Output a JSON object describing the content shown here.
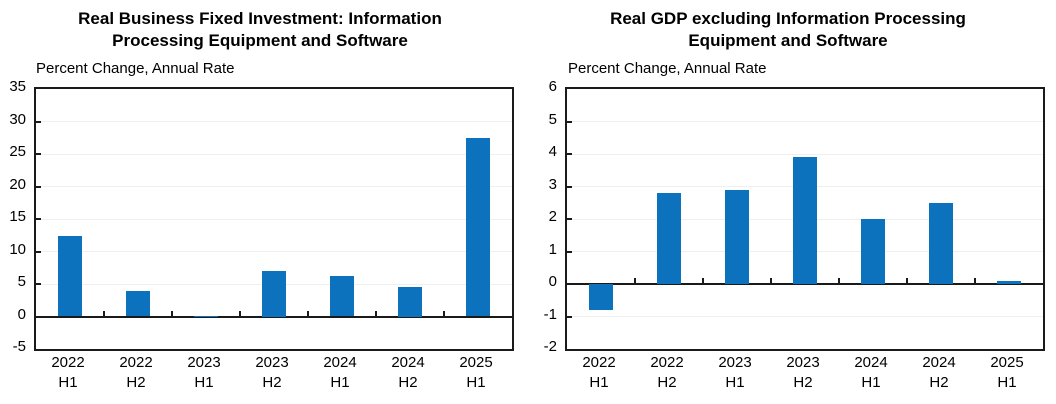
{
  "chart_data": [
    {
      "type": "bar",
      "title": "Real Business Fixed Investment: Information Processing Equipment and Software",
      "title_lines": [
        "Real Business Fixed Investment: Information",
        "Processing Equipment and Software"
      ],
      "units_label": "Percent Change, Annual Rate",
      "categories": [
        [
          "2022",
          "H1"
        ],
        [
          "2022",
          "H2"
        ],
        [
          "2023",
          "H1"
        ],
        [
          "2023",
          "H2"
        ],
        [
          "2024",
          "H1"
        ],
        [
          "2024",
          "H2"
        ],
        [
          "2025",
          "H1"
        ]
      ],
      "values": [
        12.4,
        3.9,
        0.1,
        7.0,
        6.3,
        4.5,
        27.4
      ],
      "ylim": [
        -5,
        35
      ],
      "yticks": [
        35,
        30,
        25,
        20,
        15,
        10,
        5,
        0,
        -5
      ],
      "grid": true,
      "legend": "none",
      "colors": {
        "bar": "#0d72bd",
        "axis": "#1a1a1a",
        "grid": "#efefef"
      }
    },
    {
      "type": "bar",
      "title": "Real GDP excluding Information Processing Equipment and Software",
      "title_lines": [
        "Real GDP excluding Information Processing",
        "Equipment and Software"
      ],
      "units_label": "Percent Change, Annual Rate",
      "categories": [
        [
          "2022",
          "H1"
        ],
        [
          "2022",
          "H2"
        ],
        [
          "2023",
          "H1"
        ],
        [
          "2023",
          "H2"
        ],
        [
          "2024",
          "H1"
        ],
        [
          "2024",
          "H2"
        ],
        [
          "2025",
          "H1"
        ]
      ],
      "values": [
        -0.8,
        2.8,
        2.9,
        3.9,
        2.0,
        2.5,
        0.1
      ],
      "ylim": [
        -2,
        6
      ],
      "yticks": [
        6,
        5,
        4,
        3,
        2,
        1,
        0,
        -1,
        -2
      ],
      "grid": true,
      "legend": "none",
      "colors": {
        "bar": "#0d72bd",
        "axis": "#1a1a1a",
        "grid": "#efefef"
      }
    }
  ]
}
